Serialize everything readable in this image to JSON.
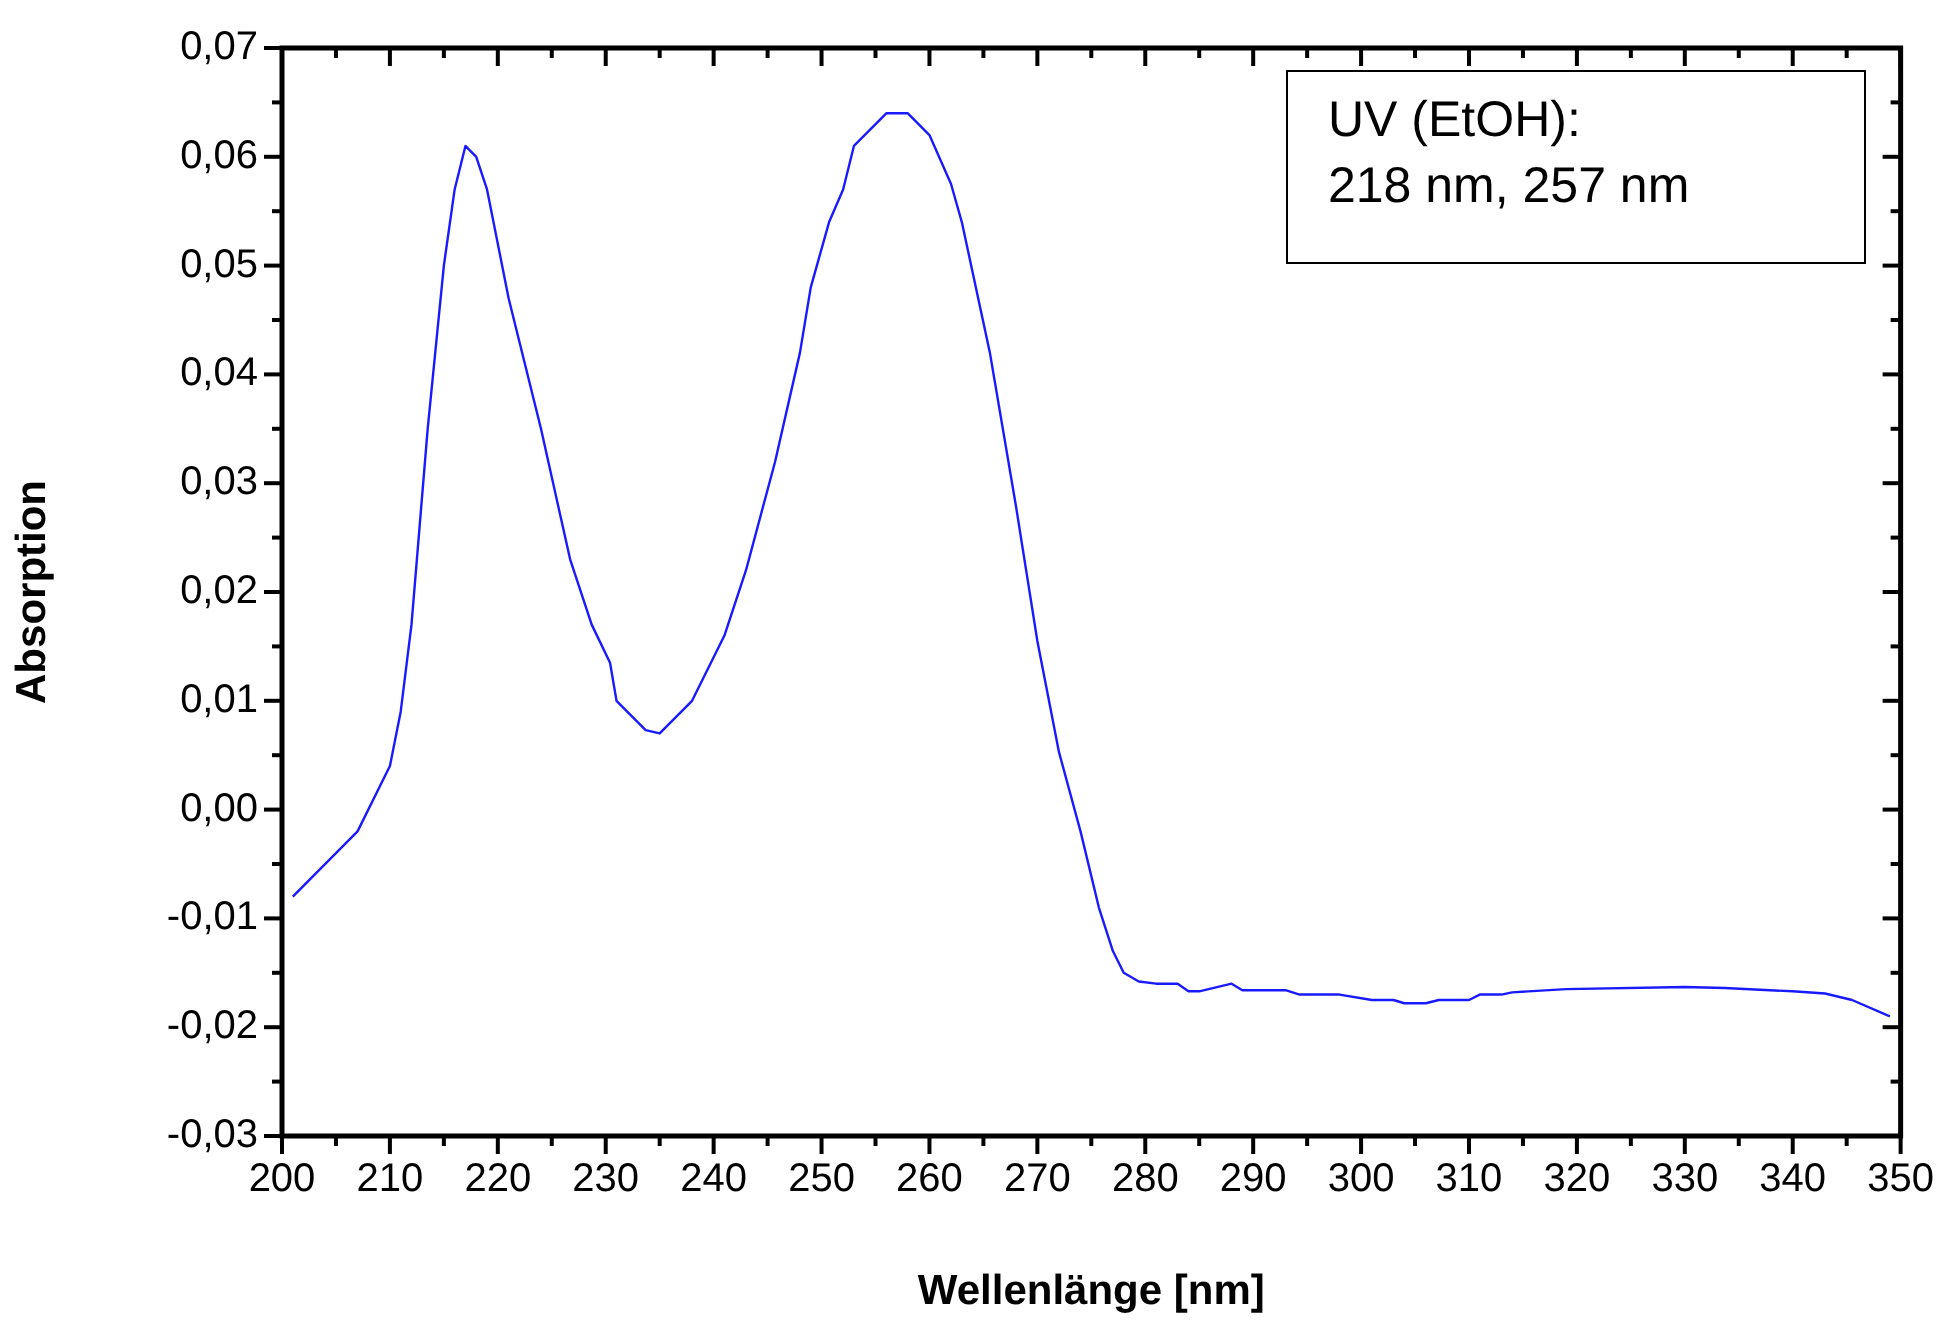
{
  "chart_data": {
    "type": "line",
    "xlabel": "Wellenlänge [nm]",
    "ylabel": "Absorption",
    "annotations": [
      "UV (EtOH):",
      "218 nm, 257 nm"
    ],
    "x": [
      201,
      207,
      210,
      211,
      212,
      213.5,
      215,
      216,
      217,
      218,
      219,
      221,
      224,
      226.7,
      228.7,
      230.4,
      231,
      233.7,
      235,
      238,
      241,
      243,
      245.7,
      248,
      249,
      250.7,
      252,
      253,
      256,
      258,
      260,
      262,
      263,
      265.6,
      268,
      270,
      272,
      274,
      275.7,
      277,
      278,
      279.4,
      281,
      283,
      284,
      285,
      288,
      289,
      293,
      294.3,
      298,
      301,
      303,
      304,
      306,
      307.2,
      310,
      311,
      313,
      314,
      319,
      330,
      333.7,
      340,
      343,
      345.5,
      349
    ],
    "series": [
      {
        "color": "#1a1aff",
        "values": [
          -0.008,
          -0.002,
          0.004,
          0.009,
          0.017,
          0.035,
          0.05,
          0.057,
          0.061,
          0.06,
          0.057,
          0.047,
          0.035,
          0.023,
          0.017,
          0.0135,
          0.01,
          0.0073,
          0.007,
          0.01,
          0.016,
          0.022,
          0.032,
          0.042,
          0.048,
          0.054,
          0.057,
          0.061,
          0.064,
          0.064,
          0.062,
          0.0575,
          0.054,
          0.042,
          0.028,
          0.0155,
          0.0053,
          -0.002,
          -0.009,
          -0.013,
          -0.015,
          -0.0158,
          -0.016,
          -0.016,
          -0.0167,
          -0.0167,
          -0.016,
          -0.0166,
          -0.0166,
          -0.017,
          -0.017,
          -0.0175,
          -0.0175,
          -0.0178,
          -0.0178,
          -0.0175,
          -0.0175,
          -0.017,
          -0.017,
          -0.0168,
          -0.0165,
          -0.0163,
          -0.0164,
          -0.0167,
          -0.0169,
          -0.0175,
          -0.019
        ]
      }
    ],
    "xlim": [
      200,
      350
    ],
    "xticks": [
      200,
      {
        "value": 205,
        "label": null
      },
      210,
      {
        "value": 215,
        "label": null
      },
      220,
      {
        "value": 225,
        "label": null
      },
      230,
      {
        "value": 235,
        "label": null
      },
      240,
      {
        "value": 245,
        "label": null
      },
      250,
      {
        "value": 255,
        "label": null
      },
      260,
      {
        "value": 265,
        "label": null
      },
      270,
      {
        "value": 275,
        "label": null
      },
      280,
      {
        "value": 285,
        "label": null
      },
      290,
      {
        "value": 295,
        "label": null
      },
      300,
      {
        "value": 305,
        "label": null
      },
      310,
      {
        "value": 315,
        "label": null
      },
      320,
      {
        "value": 325,
        "label": null
      },
      330,
      {
        "value": 335,
        "label": null
      },
      340,
      {
        "value": 345,
        "label": null
      },
      350
    ],
    "ylim": [
      -0.03,
      0.07
    ],
    "yticks": [
      {
        "value": -0.03,
        "label": "-0,03"
      },
      {
        "value": -0.025,
        "label": null
      },
      {
        "value": -0.02,
        "label": "-0,02"
      },
      {
        "value": -0.015,
        "label": null
      },
      {
        "value": -0.01,
        "label": "-0,01"
      },
      {
        "value": -0.005,
        "label": null
      },
      {
        "value": 0,
        "label": "0,00"
      },
      {
        "value": 0.005,
        "label": null
      },
      {
        "value": 0.01,
        "label": "0,01"
      },
      {
        "value": 0.015,
        "label": null
      },
      {
        "value": 0.02,
        "label": "0,02"
      },
      {
        "value": 0.025,
        "label": null
      },
      {
        "value": 0.03,
        "label": "0,03"
      },
      {
        "value": 0.035,
        "label": null
      },
      {
        "value": 0.04,
        "label": "0,04"
      },
      {
        "value": 0.045,
        "label": null
      },
      {
        "value": 0.05,
        "label": "0,05"
      },
      {
        "value": 0.055,
        "label": null
      },
      {
        "value": 0.06,
        "label": "0,06"
      },
      {
        "value": 0.065,
        "label": null
      },
      {
        "value": 0.07,
        "label": "0,07"
      }
    ],
    "grid": false,
    "legend": false,
    "marker": "none",
    "line_style": "solid"
  }
}
